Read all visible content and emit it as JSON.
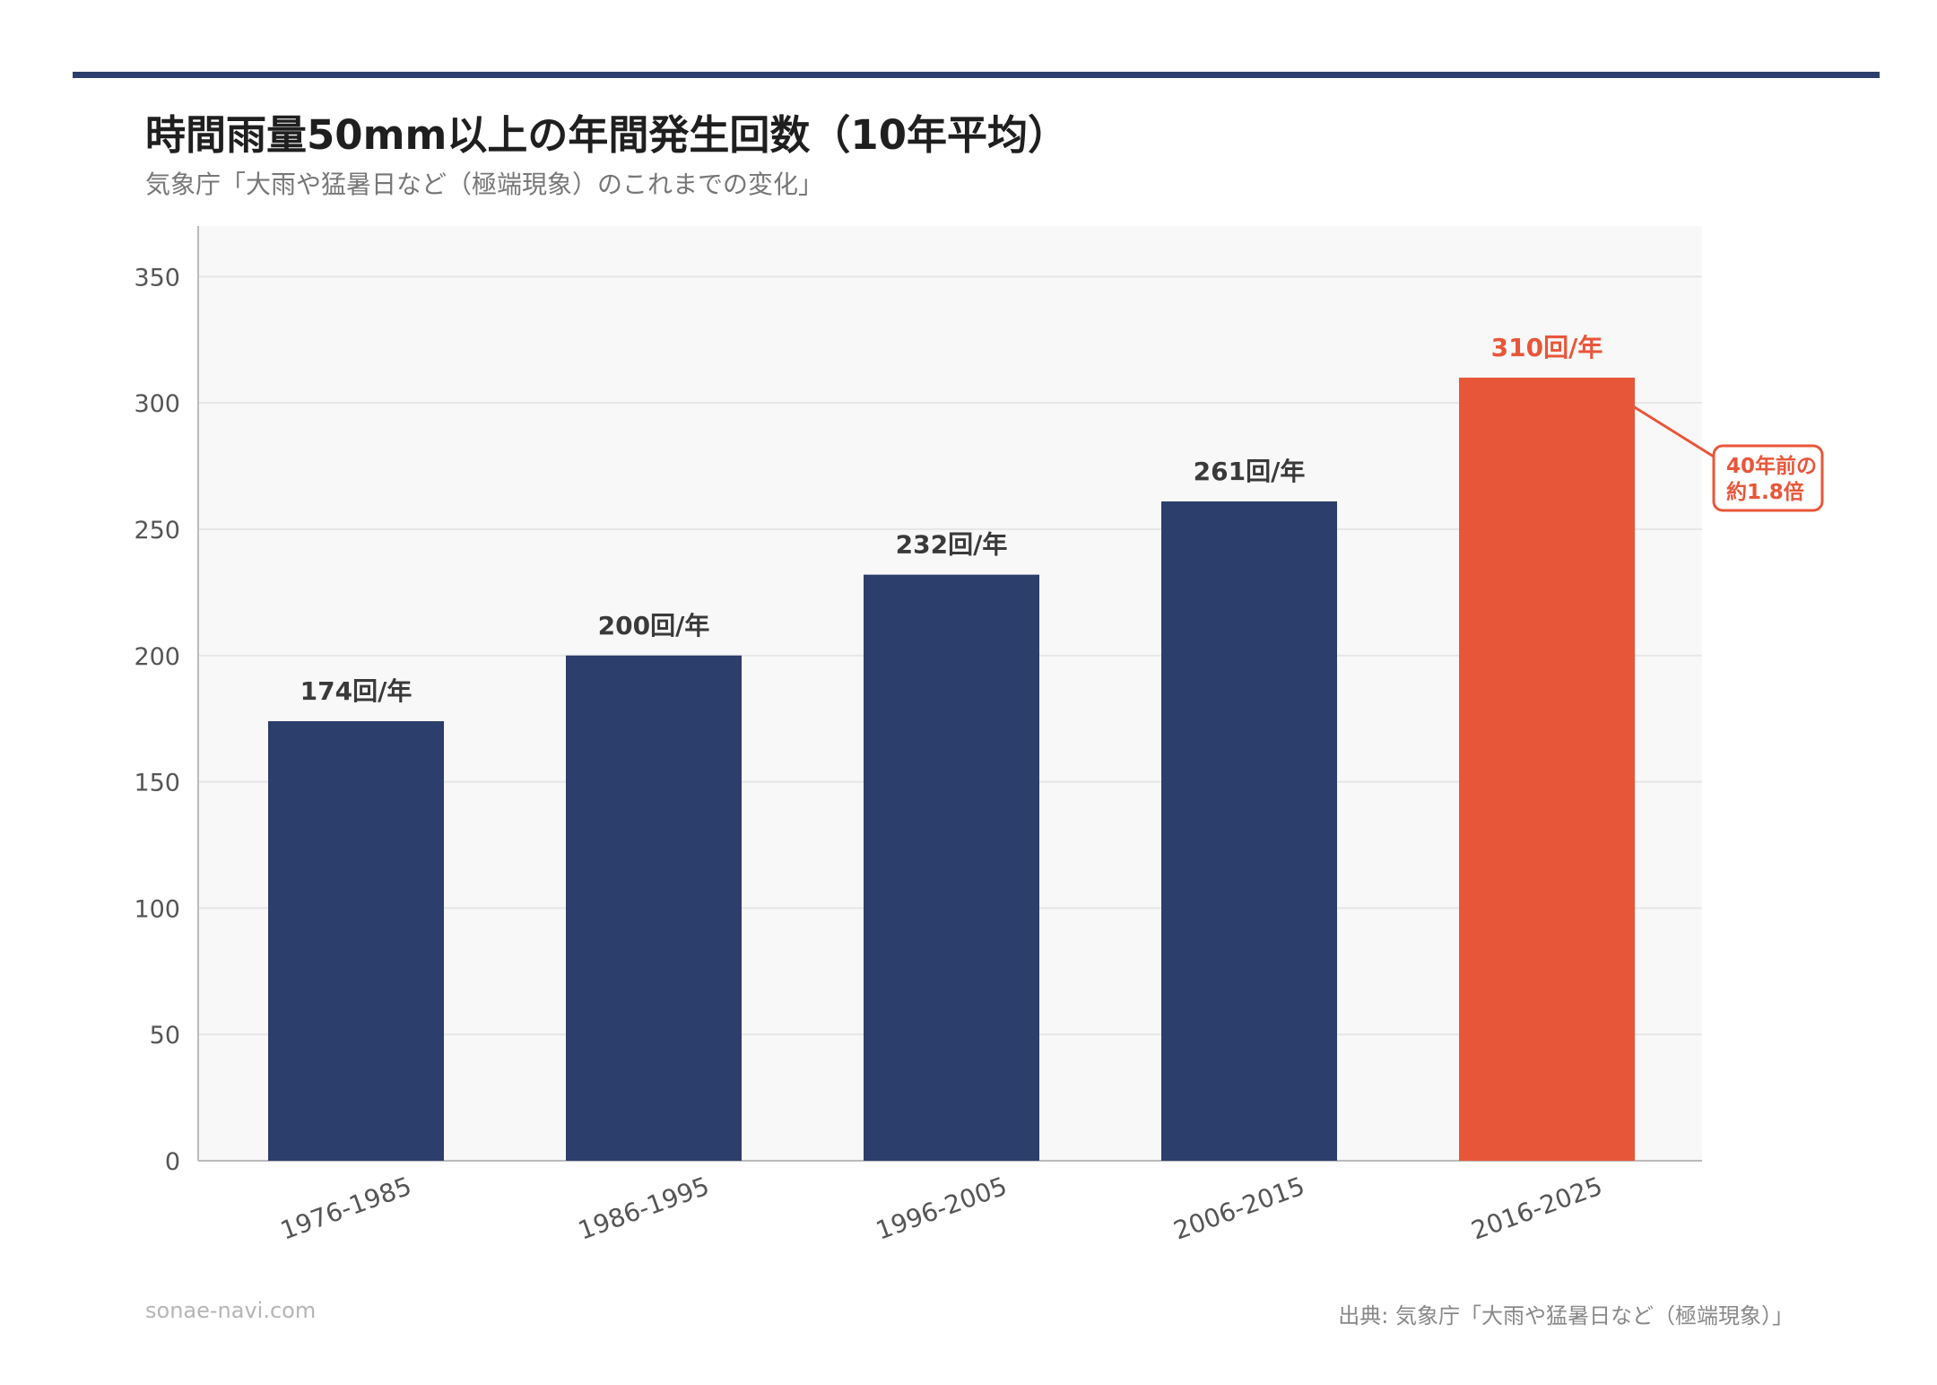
{
  "header": {
    "title": "時間雨量50mm以上の年間発生回数（10年平均）",
    "subtitle": "気象庁「大雨や猛暑日など（極端現象）のこれまでの変化」"
  },
  "footer": {
    "site": "sonae-navi.com",
    "source": "出典: 気象庁「大雨や猛暑日など（極端現象）」"
  },
  "colors": {
    "primary": "#2c3e6b",
    "highlight": "#e8563a",
    "plot_bg": "#f8f8f8",
    "grid": "#e6e6e6",
    "axis": "#bbbbbb",
    "tick_text": "#555555",
    "label_text": "#3a3a3a"
  },
  "chart_data": {
    "type": "bar",
    "categories": [
      "1976-1985",
      "1986-1995",
      "1996-2005",
      "2006-2015",
      "2016-2025"
    ],
    "values": [
      174,
      200,
      232,
      261,
      310
    ],
    "data_labels": [
      "174回/年",
      "200回/年",
      "232回/年",
      "261回/年",
      "310回/年"
    ],
    "highlight_index": 4,
    "ylim": [
      0,
      370
    ],
    "yticks": [
      0,
      50,
      100,
      150,
      200,
      250,
      300,
      350
    ],
    "xlabel": "",
    "ylabel": "",
    "grid": true,
    "annotation": {
      "lines": [
        "40年前の",
        "約1.8倍"
      ],
      "target_index": 4
    }
  }
}
